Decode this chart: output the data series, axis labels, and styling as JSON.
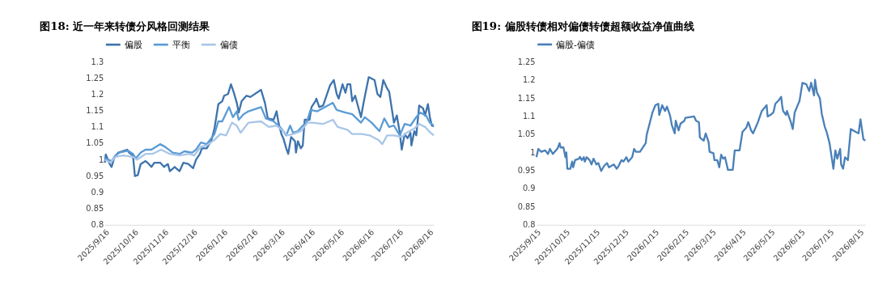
{
  "chart_data": [
    {
      "type": "line",
      "title": "图18: 近一年来转债分风格回测结果",
      "legend": "top",
      "grid": false,
      "marker": "none",
      "line_style": "solid",
      "xlim": [
        "2025-09-16",
        "2026-08-21"
      ],
      "ylim": [
        0.8,
        1.3
      ],
      "yticks": [
        0.8,
        0.85,
        0.9,
        0.95,
        1,
        1.05,
        1.1,
        1.15,
        1.2,
        1.25,
        1.3
      ],
      "xticks": [
        {
          "value": "2025-09-16",
          "label": "2025/9/16"
        },
        {
          "value": "2025-10-16",
          "label": "2025/10/16"
        },
        {
          "value": "2025-11-16",
          "label": "2025/11/16"
        },
        {
          "value": "2025-12-16",
          "label": "2025/12/16"
        },
        {
          "value": "2026-01-16",
          "label": "2026/1/16"
        },
        {
          "value": "2026-02-16",
          "label": "2026/2/16"
        },
        {
          "value": "2026-03-16",
          "label": "2026/3/16"
        },
        {
          "value": "2026-04-16",
          "label": "2026/4/16"
        },
        {
          "value": "2026-05-16",
          "label": "2026/5/16"
        },
        {
          "value": "2026-06-16",
          "label": "2026/6/16"
        },
        {
          "value": "2026-07-16",
          "label": "2026/7/16"
        },
        {
          "value": "2026-08-16",
          "label": "2026/8/16"
        }
      ],
      "series": [
        {
          "name": "偏股",
          "color": "#3e74ad",
          "x": [
            "2025-09-16",
            "2025-09-17",
            "2025-09-21",
            "2025-09-23",
            "2025-09-26",
            "2025-09-30",
            "2025-10-09",
            "2025-10-11",
            "2025-10-15",
            "2025-10-17",
            "2025-10-20",
            "2025-10-23",
            "2025-10-28",
            "2025-10-30",
            "2025-11-03",
            "2025-11-06",
            "2025-11-12",
            "2025-11-16",
            "2025-11-20",
            "2025-11-22",
            "2025-11-27",
            "2025-12-02",
            "2025-12-06",
            "2025-12-11",
            "2025-12-16",
            "2025-12-19",
            "2025-12-23",
            "2025-12-25",
            "2025-12-30",
            "2026-01-04",
            "2026-01-07",
            "2026-01-11",
            "2026-01-15",
            "2026-01-17",
            "2026-01-21",
            "2026-01-24",
            "2026-01-27",
            "2026-01-30",
            "2026-02-01",
            "2026-02-04",
            "2026-02-09",
            "2026-02-13",
            "2026-02-24",
            "2026-02-28",
            "2026-03-03",
            "2026-03-09",
            "2026-03-12",
            "2026-03-14",
            "2026-03-17",
            "2026-03-19",
            "2026-03-22",
            "2026-03-24",
            "2026-03-27",
            "2026-03-31",
            "2026-04-01",
            "2026-04-03",
            "2026-04-06",
            "2026-04-08",
            "2026-04-10",
            "2026-04-15",
            "2026-04-17",
            "2026-04-21",
            "2026-04-22",
            "2026-04-25",
            "2026-04-29",
            "2026-05-06",
            "2026-05-10",
            "2026-05-13",
            "2026-05-15",
            "2026-05-19",
            "2026-05-22",
            "2026-05-24",
            "2026-05-27",
            "2026-05-29",
            "2026-06-01",
            "2026-06-07",
            "2026-06-10",
            "2026-06-15",
            "2026-06-21",
            "2026-06-24",
            "2026-06-27",
            "2026-06-30",
            "2026-07-04",
            "2026-07-06",
            "2026-07-11",
            "2026-07-14",
            "2026-07-17",
            "2026-07-19",
            "2026-07-22",
            "2026-07-25",
            "2026-07-28",
            "2026-07-29",
            "2026-08-01",
            "2026-08-03",
            "2026-08-06",
            "2026-08-10",
            "2026-08-12",
            "2026-08-15",
            "2026-08-17",
            "2026-08-19",
            "2026-08-21"
          ],
          "values": [
            0.991,
            1.016,
            0.987,
            0.978,
            1.009,
            1.022,
            1.031,
            1.022,
            1.013,
            0.95,
            0.953,
            0.987,
            0.996,
            0.991,
            0.978,
            0.991,
            0.991,
            0.978,
            0.987,
            0.965,
            0.978,
            0.965,
            0.991,
            0.987,
            0.974,
            1.0,
            1.018,
            1.035,
            1.035,
            1.061,
            1.096,
            1.171,
            1.18,
            1.197,
            1.202,
            1.232,
            1.206,
            1.175,
            1.145,
            1.18,
            1.197,
            1.193,
            1.215,
            1.175,
            1.127,
            1.123,
            1.149,
            1.114,
            1.079,
            1.066,
            1.035,
            1.018,
            1.07,
            1.057,
            1.022,
            1.057,
            1.035,
            1.044,
            1.123,
            1.123,
            1.162,
            1.18,
            1.188,
            1.162,
            1.167,
            1.228,
            1.245,
            1.202,
            1.188,
            1.232,
            1.206,
            1.232,
            1.232,
            1.18,
            1.197,
            1.131,
            1.18,
            1.254,
            1.245,
            1.202,
            1.193,
            1.245,
            1.219,
            1.21,
            1.114,
            1.136,
            1.083,
            1.031,
            1.079,
            1.066,
            1.083,
            1.044,
            1.088,
            1.075,
            1.167,
            1.158,
            1.136,
            1.171,
            1.131,
            1.105,
            1.103
          ]
        },
        {
          "name": "平衡",
          "color": "#5b9bd5",
          "x": [
            "2025-09-16",
            "2025-09-20",
            "2025-09-23",
            "2025-09-27",
            "2025-10-01",
            "2025-10-10",
            "2025-10-15",
            "2025-10-18",
            "2025-10-23",
            "2025-10-28",
            "2025-11-03",
            "2025-11-12",
            "2025-11-17",
            "2025-11-25",
            "2025-12-02",
            "2025-12-07",
            "2025-12-15",
            "2025-12-19",
            "2025-12-24",
            "2025-12-30",
            "2026-01-07",
            "2026-01-11",
            "2026-01-15",
            "2026-01-22",
            "2026-01-26",
            "2026-01-30",
            "2026-02-01",
            "2026-02-06",
            "2026-02-11",
            "2026-02-24",
            "2026-03-01",
            "2026-03-09",
            "2026-03-17",
            "2026-03-22",
            "2026-03-26",
            "2026-03-29",
            "2026-04-03",
            "2026-04-08",
            "2026-04-12",
            "2026-04-16",
            "2026-04-23",
            "2026-05-09",
            "2026-05-13",
            "2026-05-22",
            "2026-05-29",
            "2026-06-07",
            "2026-06-11",
            "2026-06-18",
            "2026-06-26",
            "2026-07-01",
            "2026-07-06",
            "2026-07-11",
            "2026-07-17",
            "2026-07-22",
            "2026-07-28",
            "2026-08-03",
            "2026-08-07",
            "2026-08-13",
            "2026-08-17",
            "2026-08-21"
          ],
          "values": [
            1.004,
            1.0,
            0.996,
            1.013,
            1.022,
            1.028,
            1.018,
            1.004,
            1.022,
            1.031,
            1.031,
            1.048,
            1.04,
            1.022,
            1.018,
            1.026,
            1.022,
            1.031,
            1.053,
            1.048,
            1.079,
            1.118,
            1.118,
            1.162,
            1.131,
            1.149,
            1.123,
            1.14,
            1.149,
            1.162,
            1.127,
            1.118,
            1.096,
            1.075,
            1.105,
            1.083,
            1.088,
            1.105,
            1.114,
            1.153,
            1.149,
            1.175,
            1.153,
            1.145,
            1.14,
            1.114,
            1.131,
            1.114,
            1.088,
            1.127,
            1.101,
            1.105,
            1.075,
            1.11,
            1.105,
            1.131,
            1.145,
            1.136,
            1.114,
            1.105
          ]
        },
        {
          "name": "偏债",
          "color": "#a9c6e8",
          "x": [
            "2025-09-16",
            "2025-09-22",
            "2025-09-27",
            "2025-10-05",
            "2025-10-15",
            "2025-10-19",
            "2025-10-28",
            "2025-11-04",
            "2025-11-13",
            "2025-11-22",
            "2025-12-02",
            "2025-12-12",
            "2025-12-17",
            "2025-12-24",
            "2025-12-30",
            "2026-01-07",
            "2026-01-13",
            "2026-01-19",
            "2026-01-25",
            "2026-01-30",
            "2026-02-03",
            "2026-02-11",
            "2026-02-24",
            "2026-03-04",
            "2026-03-12",
            "2026-03-19",
            "2026-03-23",
            "2026-03-29",
            "2026-04-06",
            "2026-04-13",
            "2026-04-18",
            "2026-04-29",
            "2026-05-09",
            "2026-05-14",
            "2026-05-24",
            "2026-05-29",
            "2026-06-08",
            "2026-06-16",
            "2026-06-25",
            "2026-06-29",
            "2026-07-04",
            "2026-07-11",
            "2026-07-19",
            "2026-07-24",
            "2026-08-01",
            "2026-08-06",
            "2026-08-12",
            "2026-08-16",
            "2026-08-21"
          ],
          "values": [
            1.0,
            0.991,
            1.009,
            1.013,
            1.009,
            1.0,
            1.018,
            1.018,
            1.031,
            1.018,
            1.013,
            1.018,
            1.013,
            1.04,
            1.044,
            1.061,
            1.079,
            1.075,
            1.114,
            1.105,
            1.083,
            1.114,
            1.118,
            1.101,
            1.105,
            1.088,
            1.075,
            1.079,
            1.088,
            1.114,
            1.114,
            1.11,
            1.123,
            1.101,
            1.092,
            1.079,
            1.079,
            1.075,
            1.061,
            1.048,
            1.075,
            1.075,
            1.07,
            1.083,
            1.096,
            1.11,
            1.101,
            1.088,
            1.075
          ]
        }
      ]
    },
    {
      "type": "line",
      "title": "图19: 偏股转债相对偏债转债超额收益净值曲线",
      "legend": "top",
      "grid": false,
      "marker": "none",
      "line_style": "solid",
      "xlim": [
        "2025-09-15",
        "2026-08-21"
      ],
      "ylim": [
        0.8,
        1.25
      ],
      "yticks": [
        0.8,
        0.85,
        0.9,
        0.95,
        1,
        1.05,
        1.1,
        1.15,
        1.2,
        1.25
      ],
      "xticks": [
        {
          "value": "2025-09-15",
          "label": "2025/9/15"
        },
        {
          "value": "2025-10-15",
          "label": "2025/10/15"
        },
        {
          "value": "2025-11-15",
          "label": "2025/11/15"
        },
        {
          "value": "2025-12-15",
          "label": "2025/12/15"
        },
        {
          "value": "2026-01-15",
          "label": "2026/1/15"
        },
        {
          "value": "2026-02-15",
          "label": "2026/2/15"
        },
        {
          "value": "2026-03-15",
          "label": "2026/3/15"
        },
        {
          "value": "2026-04-15",
          "label": "2026/4/15"
        },
        {
          "value": "2026-05-15",
          "label": "2026/5/15"
        },
        {
          "value": "2026-06-15",
          "label": "2026/6/15"
        },
        {
          "value": "2026-07-15",
          "label": "2026/7/15"
        },
        {
          "value": "2026-08-15",
          "label": "2026/8/15"
        }
      ],
      "series": [
        {
          "name": "偏股-偏债",
          "color": "#4a80b8",
          "x": [
            "2025-09-15",
            "2025-09-17",
            "2025-09-20",
            "2025-09-24",
            "2025-09-27",
            "2025-09-29",
            "2025-10-02",
            "2025-10-07",
            "2025-10-09",
            "2025-10-10",
            "2025-10-13",
            "2025-10-15",
            "2025-10-16",
            "2025-10-17",
            "2025-10-20",
            "2025-10-22",
            "2025-10-23",
            "2025-10-25",
            "2025-10-29",
            "2025-10-30",
            "2025-11-01",
            "2025-11-03",
            "2025-11-04",
            "2025-11-06",
            "2025-11-09",
            "2025-11-11",
            "2025-11-13",
            "2025-11-16",
            "2025-11-18",
            "2025-11-21",
            "2025-11-24",
            "2025-11-27",
            "2025-11-29",
            "2025-12-04",
            "2025-12-07",
            "2025-12-09",
            "2025-12-12",
            "2025-12-14",
            "2025-12-17",
            "2025-12-19",
            "2025-12-23",
            "2025-12-25",
            "2025-12-27",
            "2025-12-31",
            "2026-01-02",
            "2026-01-06",
            "2026-01-07",
            "2026-01-10",
            "2026-01-13",
            "2026-01-16",
            "2026-01-19",
            "2026-01-20",
            "2026-01-23",
            "2026-01-26",
            "2026-01-28",
            "2026-01-31",
            "2026-02-02",
            "2026-02-05",
            "2026-02-06",
            "2026-02-09",
            "2026-02-11",
            "2026-02-15",
            "2026-02-16",
            "2026-02-25",
            "2026-02-27",
            "2026-03-02",
            "2026-03-03",
            "2026-03-07",
            "2026-03-09",
            "2026-03-12",
            "2026-03-13",
            "2026-03-17",
            "2026-03-18",
            "2026-03-21",
            "2026-03-23",
            "2026-03-25",
            "2026-03-27",
            "2026-03-29",
            "2026-04-01",
            "2026-04-06",
            "2026-04-08",
            "2026-04-13",
            "2026-04-16",
            "2026-04-20",
            "2026-04-22",
            "2026-04-25",
            "2026-04-27",
            "2026-05-02",
            "2026-05-06",
            "2026-05-11",
            "2026-05-12",
            "2026-05-15",
            "2026-05-18",
            "2026-05-20",
            "2026-05-23",
            "2026-05-26",
            "2026-05-27",
            "2026-05-28",
            "2026-05-31",
            "2026-06-01",
            "2026-06-05",
            "2026-06-07",
            "2026-06-09",
            "2026-06-14",
            "2026-06-17",
            "2026-06-21",
            "2026-06-24",
            "2026-06-26",
            "2026-06-29",
            "2026-06-30",
            "2026-07-02",
            "2026-07-05",
            "2026-07-07",
            "2026-07-10",
            "2026-07-12",
            "2026-07-15",
            "2026-07-19",
            "2026-07-21",
            "2026-07-23",
            "2026-07-26",
            "2026-07-27",
            "2026-07-29",
            "2026-07-31",
            "2026-08-03",
            "2026-08-06",
            "2026-08-11",
            "2026-08-14",
            "2026-08-16",
            "2026-08-19",
            "2026-08-21"
          ],
          "values": [
            0.987,
            1.01,
            1.002,
            1.006,
            0.996,
            1.01,
            0.996,
            1.012,
            1.026,
            1.014,
            1.014,
            0.987,
            1.0,
            0.955,
            0.955,
            0.975,
            0.959,
            0.979,
            0.983,
            0.988,
            0.979,
            0.987,
            0.975,
            0.987,
            0.979,
            0.967,
            0.983,
            0.967,
            0.971,
            0.949,
            0.963,
            0.971,
            0.959,
            0.967,
            0.955,
            0.963,
            0.979,
            0.975,
            0.987,
            0.975,
            0.987,
            1.01,
            1.002,
            1.002,
            1.01,
            1.026,
            1.049,
            1.08,
            1.111,
            1.131,
            1.135,
            1.104,
            1.131,
            1.115,
            1.127,
            1.104,
            1.076,
            1.053,
            1.088,
            1.061,
            1.08,
            1.088,
            1.096,
            1.1,
            1.088,
            1.084,
            1.041,
            1.033,
            1.053,
            1.029,
            1.002,
            0.998,
            0.979,
            0.979,
            0.959,
            0.994,
            0.983,
            0.987,
            0.952,
            0.952,
            1.006,
            1.006,
            1.057,
            1.069,
            1.084,
            1.061,
            1.053,
            1.084,
            1.115,
            1.131,
            1.1,
            1.104,
            1.111,
            1.135,
            1.143,
            1.154,
            1.131,
            1.115,
            1.104,
            1.115,
            1.084,
            1.065,
            1.111,
            1.143,
            1.193,
            1.189,
            1.17,
            1.193,
            1.158,
            1.201,
            1.166,
            1.15,
            1.107,
            1.072,
            1.057,
            1.026,
            0.955,
            1.006,
            0.983,
            1.01,
            0.967,
            0.955,
            0.987,
            0.979,
            1.065,
            1.057,
            1.053,
            1.092,
            1.037,
            1.033
          ]
        }
      ]
    }
  ]
}
